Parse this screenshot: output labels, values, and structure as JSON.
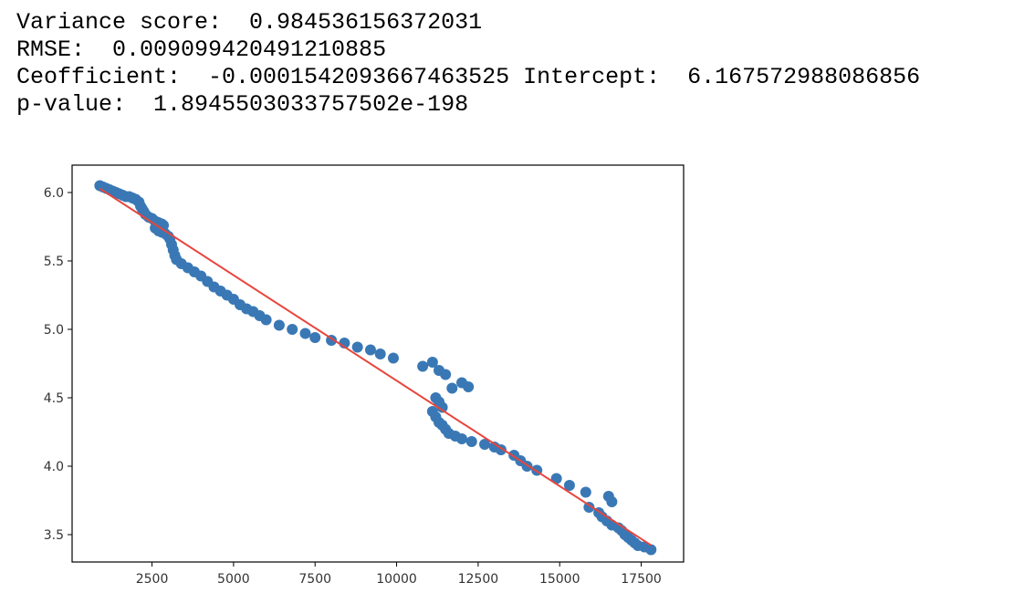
{
  "output": {
    "variance_line": "Variance score:  0.984536156372031",
    "rmse_line": "RMSE:  0.009099420491210885",
    "coef_line": "Ceofficient:  -0.0001542093667463525 Intercept:  6.167572988086856",
    "pvalue_line": "p-value:  1.8945503033757502e-198"
  },
  "chart_data": {
    "type": "scatter",
    "title": "",
    "xlabel": "",
    "ylabel": "",
    "xlim": [
      50,
      18800
    ],
    "ylim": [
      3.3,
      6.2
    ],
    "grid": false,
    "x_ticks": [
      2500,
      5000,
      7500,
      10000,
      12500,
      15000,
      17500
    ],
    "x_tick_labels": [
      "2500",
      "5000",
      "7500",
      "10000",
      "12500",
      "15000",
      "17500"
    ],
    "y_ticks": [
      3.5,
      4.0,
      4.5,
      5.0,
      5.5,
      6.0
    ],
    "y_tick_labels": [
      "3.5",
      "4.0",
      "4.5",
      "5.0",
      "5.5",
      "6.0"
    ],
    "colors": {
      "points": "#3a78b5",
      "fit_line": "#e8453c",
      "axes": "#000000"
    },
    "series": [
      {
        "type": "scatter",
        "points": [
          [
            900,
            6.05
          ],
          [
            1000,
            6.04
          ],
          [
            1100,
            6.03
          ],
          [
            1200,
            6.02
          ],
          [
            1300,
            6.01
          ],
          [
            1400,
            6.0
          ],
          [
            1500,
            5.99
          ],
          [
            1600,
            5.98
          ],
          [
            1700,
            5.97
          ],
          [
            1800,
            5.97
          ],
          [
            1900,
            5.96
          ],
          [
            2000,
            5.95
          ],
          [
            2100,
            5.93
          ],
          [
            2150,
            5.9
          ],
          [
            2200,
            5.88
          ],
          [
            2250,
            5.86
          ],
          [
            2300,
            5.84
          ],
          [
            2400,
            5.82
          ],
          [
            2500,
            5.81
          ],
          [
            2600,
            5.79
          ],
          [
            2700,
            5.78
          ],
          [
            2800,
            5.77
          ],
          [
            2850,
            5.76
          ],
          [
            2600,
            5.74
          ],
          [
            2700,
            5.72
          ],
          [
            2800,
            5.71
          ],
          [
            2900,
            5.7
          ],
          [
            3000,
            5.68
          ],
          [
            3050,
            5.66
          ],
          [
            3100,
            5.62
          ],
          [
            3150,
            5.58
          ],
          [
            3200,
            5.54
          ],
          [
            3250,
            5.51
          ],
          [
            3400,
            5.48
          ],
          [
            3600,
            5.45
          ],
          [
            3800,
            5.42
          ],
          [
            4000,
            5.39
          ],
          [
            4200,
            5.35
          ],
          [
            4400,
            5.31
          ],
          [
            4600,
            5.28
          ],
          [
            4800,
            5.25
          ],
          [
            5000,
            5.22
          ],
          [
            5200,
            5.18
          ],
          [
            5400,
            5.15
          ],
          [
            5600,
            5.13
          ],
          [
            5800,
            5.1
          ],
          [
            6000,
            5.07
          ],
          [
            6400,
            5.03
          ],
          [
            6800,
            5.0
          ],
          [
            7200,
            4.97
          ],
          [
            7500,
            4.94
          ],
          [
            8000,
            4.92
          ],
          [
            8400,
            4.9
          ],
          [
            8800,
            4.87
          ],
          [
            9200,
            4.85
          ],
          [
            9500,
            4.82
          ],
          [
            9900,
            4.79
          ],
          [
            10800,
            4.73
          ],
          [
            11100,
            4.76
          ],
          [
            11300,
            4.7
          ],
          [
            11500,
            4.67
          ],
          [
            11700,
            4.57
          ],
          [
            12000,
            4.61
          ],
          [
            12200,
            4.58
          ],
          [
            11200,
            4.5
          ],
          [
            11300,
            4.47
          ],
          [
            11400,
            4.43
          ],
          [
            11100,
            4.4
          ],
          [
            11200,
            4.36
          ],
          [
            11300,
            4.32
          ],
          [
            11400,
            4.3
          ],
          [
            11500,
            4.27
          ],
          [
            11600,
            4.24
          ],
          [
            11800,
            4.22
          ],
          [
            12000,
            4.2
          ],
          [
            12300,
            4.18
          ],
          [
            12700,
            4.16
          ],
          [
            13000,
            4.14
          ],
          [
            13200,
            4.12
          ],
          [
            13600,
            4.08
          ],
          [
            13800,
            4.04
          ],
          [
            14000,
            4.0
          ],
          [
            14300,
            3.97
          ],
          [
            14900,
            3.91
          ],
          [
            15300,
            3.86
          ],
          [
            15800,
            3.81
          ],
          [
            15900,
            3.7
          ],
          [
            16200,
            3.66
          ],
          [
            16300,
            3.63
          ],
          [
            16450,
            3.6
          ],
          [
            16500,
            3.78
          ],
          [
            16600,
            3.74
          ],
          [
            16600,
            3.57
          ],
          [
            16800,
            3.55
          ],
          [
            16900,
            3.53
          ],
          [
            17000,
            3.5
          ],
          [
            17100,
            3.48
          ],
          [
            17200,
            3.46
          ],
          [
            17300,
            3.44
          ],
          [
            17400,
            3.42
          ],
          [
            17600,
            3.41
          ],
          [
            17800,
            3.39
          ]
        ]
      },
      {
        "type": "line",
        "points": [
          [
            900,
            6.028
          ],
          [
            17800,
            3.423
          ]
        ]
      }
    ]
  }
}
